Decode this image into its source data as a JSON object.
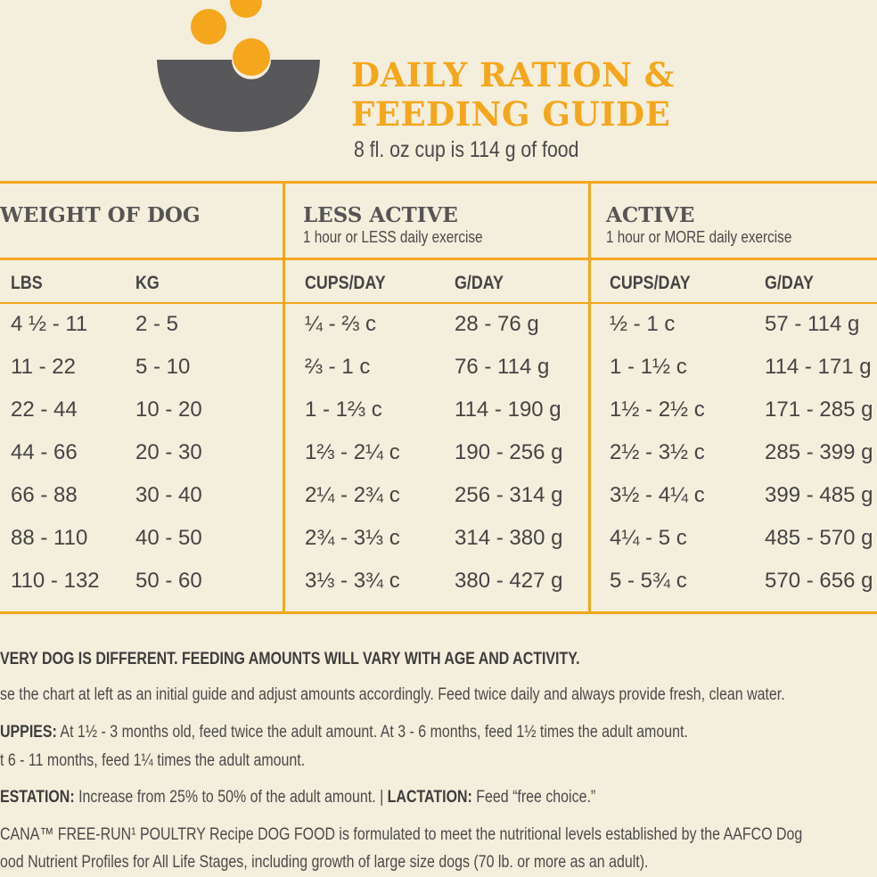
{
  "header": {
    "title_line1": "DAILY RATION &",
    "title_line2": "FEEDING GUIDE",
    "subtitle": "8 fl. oz cup is 114 g of food"
  },
  "table": {
    "group_headers": [
      {
        "title": "WEIGHT OF DOG"
      },
      {
        "title": "LESS ACTIVE",
        "subtitle": "1 hour or LESS daily exercise"
      },
      {
        "title": "ACTIVE",
        "subtitle": "1 hour or MORE daily exercise"
      }
    ],
    "column_headers": [
      "LBS",
      "KG",
      "CUPS/DAY",
      "G/DAY",
      "CUPS/DAY",
      "G/DAY"
    ],
    "rows": [
      [
        "4 ½ - 11",
        "2 - 5",
        "¼ - ⅔ c",
        "28 - 76 g",
        "½ - 1 c",
        "57 - 114 g"
      ],
      [
        "11 - 22",
        "5 - 10",
        "⅔ - 1 c",
        "76 - 114 g",
        "1 - 1½ c",
        "114 - 171 g"
      ],
      [
        "22 - 44",
        "10 - 20",
        "1 - 1⅔ c",
        "114 - 190 g",
        "1½ - 2½ c",
        "171 - 285 g"
      ],
      [
        "44 - 66",
        "20 - 30",
        "1⅔ - 2¼ c",
        "190 - 256 g",
        "2½ - 3½ c",
        "285 - 399 g"
      ],
      [
        "66 - 88",
        "30 - 40",
        "2¼ - 2¾ c",
        "256 - 314 g",
        "3½ - 4¼ c",
        "399 - 485 g"
      ],
      [
        "88 - 110",
        "40 - 50",
        "2¾ - 3⅓ c",
        "314 - 380 g",
        "4¼ - 5 c",
        "485 - 570 g"
      ],
      [
        "110 - 132",
        "50 - 60",
        "3⅓ - 3¾ c",
        "380 - 427 g",
        "5 - 5¾ c",
        "570 - 656 g"
      ]
    ]
  },
  "notes": [
    [
      {
        "text": "VERY DOG IS DIFFERENT. FEEDING AMOUNTS WILL VARY WITH AGE AND ACTIVITY.",
        "bold": true
      }
    ],
    [
      {
        "text": "se the chart at left as an initial guide and adjust amounts accordingly. Feed twice daily and always provide fresh, clean water.",
        "bold": false
      }
    ],
    [
      {
        "text": "UPPIES:",
        "bold": true
      },
      {
        "text": " At 1½ - 3 months old, feed twice the adult amount. At 3 - 6 months, feed 1½ times the adult amount.",
        "bold": false
      }
    ],
    [
      {
        "text": "t 6 - 11 months, feed 1¼ times the adult amount.",
        "bold": false
      }
    ],
    [
      {
        "text": "ESTATION:",
        "bold": true
      },
      {
        "text": " Increase from 25% to 50% of the adult amount. | ",
        "bold": false
      },
      {
        "text": "LACTATION:",
        "bold": true
      },
      {
        "text": " Feed “free choice.”",
        "bold": false
      }
    ],
    [
      {
        "text": "CANA™ FREE-RUN¹ POULTRY Recipe DOG FOOD is formulated to meet the nutritional levels established by the AAFCO Dog",
        "bold": false
      }
    ],
    [
      {
        "text": "ood Nutrient Profiles for All Life Stages, including growth of large size dogs (70 lb. or more as an adult).",
        "bold": false
      }
    ]
  ]
}
